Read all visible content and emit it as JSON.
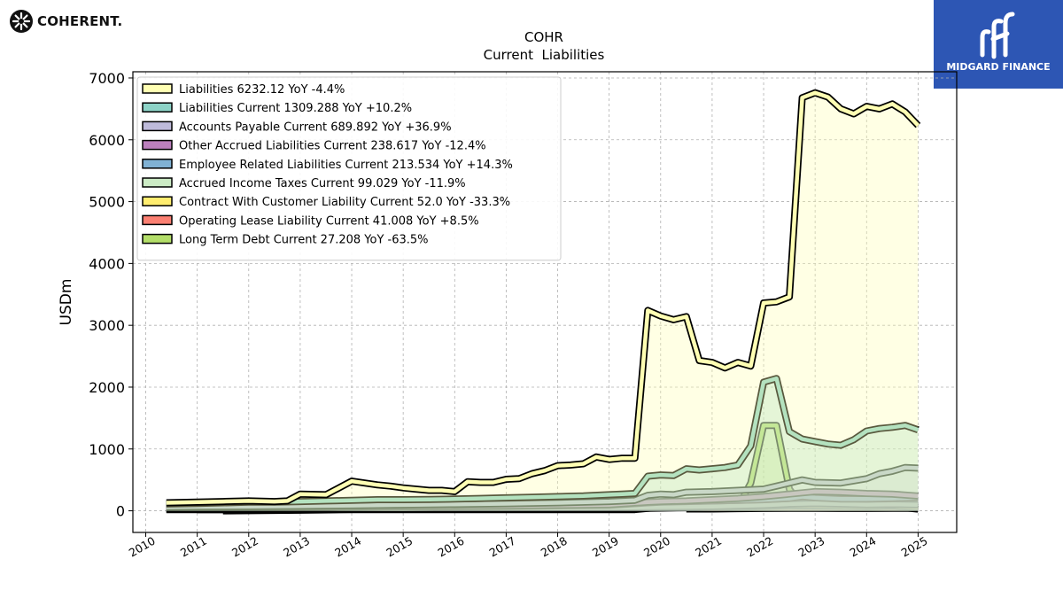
{
  "header": {
    "logo_text": "COHERENT.",
    "brand_text": "MIDGARD FINANCE"
  },
  "chart_data": {
    "type": "area",
    "title": "COHR",
    "subtitle": "Current  Liabilities",
    "ylabel": "USDm",
    "xlabel": "",
    "xlim": [
      2009.75,
      2025.75
    ],
    "ylim": [
      -350,
      7100
    ],
    "xticks": [
      2010,
      2011,
      2012,
      2013,
      2014,
      2015,
      2016,
      2017,
      2018,
      2019,
      2020,
      2021,
      2022,
      2023,
      2024,
      2025
    ],
    "yticks": [
      0,
      1000,
      2000,
      3000,
      4000,
      5000,
      6000,
      7000
    ],
    "grid": true,
    "legend_position": "top-left",
    "series": [
      {
        "name": "Long Term Debt Current",
        "legend": "Long Term Debt Current  27.208 YoY -63.5%",
        "color": "#b3de69",
        "x": [
          2011.5,
          2013.0,
          2014.0,
          2015.0,
          2016.0,
          2017.0,
          2018.0,
          2019.0,
          2019.5,
          2019.75,
          2020.0,
          2020.5,
          2021.0,
          2021.5,
          2021.75,
          2022.0,
          2022.25,
          2022.5,
          2022.75,
          2023.0,
          2023.5,
          2024.0,
          2024.5,
          2024.75,
          2025.0
        ],
        "y": [
          0,
          10,
          20,
          20,
          20,
          20,
          20,
          20,
          20,
          40,
          60,
          60,
          60,
          60,
          450,
          1380,
          1380,
          350,
          80,
          60,
          60,
          60,
          60,
          50,
          27.208
        ]
      },
      {
        "name": "Operating Lease Liability Current",
        "legend": "Operating Lease Liability Current  41.008 YoY +8.5%",
        "color": "#fb8072",
        "x": [
          2020.5,
          2021.0,
          2021.5,
          2022.0,
          2022.5,
          2023.0,
          2023.5,
          2024.0,
          2024.5,
          2025.0
        ],
        "y": [
          30,
          30,
          35,
          38,
          40,
          40,
          38,
          38,
          40,
          41.008
        ]
      },
      {
        "name": "Contract With Customer Liability Current",
        "legend": "Contract With Customer Liability Current  52.0 YoY -33.3%",
        "color": "#ffed6f",
        "x": [
          2011.0,
          2013.0,
          2015.0,
          2017.0,
          2019.0,
          2019.75,
          2020.5,
          2021.0,
          2021.5,
          2022.0,
          2022.5,
          2023.0,
          2023.5,
          2024.0,
          2024.5,
          2025.0
        ],
        "y": [
          20,
          20,
          25,
          30,
          35,
          40,
          50,
          55,
          60,
          70,
          85,
          80,
          75,
          70,
          78,
          52.0
        ]
      },
      {
        "name": "Accrued Income Taxes Current",
        "legend": "Accrued Income Taxes Current  99.029 YoY -11.9%",
        "color": "#ccebc5",
        "x": [
          2010.4,
          2011.0,
          2012.0,
          2013.0,
          2014.0,
          2015.0,
          2016.0,
          2017.0,
          2018.0,
          2019.0,
          2020.0,
          2021.0,
          2022.0,
          2022.5,
          2023.0,
          2023.5,
          2024.0,
          2024.5,
          2025.0
        ],
        "y": [
          20,
          20,
          20,
          25,
          30,
          30,
          35,
          35,
          40,
          50,
          60,
          70,
          90,
          110,
          120,
          110,
          100,
          105,
          99.029
        ]
      },
      {
        "name": "Employee Related Liabilities Current",
        "legend": "Employee Related Liabilities Current  213.534 YoY +14.3%",
        "color": "#80b1d3",
        "x": [
          2010.4,
          2011.0,
          2012.0,
          2013.0,
          2014.0,
          2015.0,
          2016.0,
          2017.0,
          2018.0,
          2019.0,
          2019.75,
          2020.0,
          2020.5,
          2021.0,
          2021.5,
          2022.0,
          2022.5,
          2022.75,
          2023.0,
          2023.5,
          2024.0,
          2024.5,
          2025.0
        ],
        "y": [
          30,
          35,
          40,
          45,
          55,
          60,
          65,
          70,
          80,
          90,
          130,
          140,
          150,
          160,
          170,
          180,
          200,
          230,
          210,
          190,
          190,
          200,
          213.534
        ]
      },
      {
        "name": "Other Accrued Liabilities Current",
        "legend": "Other Accrued Liabilities Current  238.617 YoY -12.4%",
        "color": "#bc80bd",
        "x": [
          2010.4,
          2011.0,
          2012.0,
          2013.0,
          2014.0,
          2015.0,
          2016.0,
          2017.0,
          2018.0,
          2019.0,
          2019.75,
          2020.0,
          2020.5,
          2021.0,
          2021.5,
          2022.0,
          2022.5,
          2022.75,
          2023.0,
          2023.5,
          2024.0,
          2024.5,
          2025.0
        ],
        "y": [
          40,
          45,
          50,
          55,
          60,
          70,
          75,
          80,
          90,
          100,
          140,
          150,
          160,
          180,
          200,
          230,
          270,
          290,
          310,
          300,
          280,
          270,
          238.617
        ]
      },
      {
        "name": "Accounts Payable Current",
        "legend": "Accounts Payable Current  689.892 YoY +36.9%",
        "color": "#bebada",
        "x": [
          2010.4,
          2011.0,
          2012.0,
          2013.0,
          2014.0,
          2015.0,
          2016.0,
          2017.0,
          2018.0,
          2019.0,
          2019.5,
          2019.75,
          2020.0,
          2020.25,
          2020.5,
          2021.0,
          2021.5,
          2022.0,
          2022.25,
          2022.5,
          2022.75,
          2023.0,
          2023.5,
          2024.0,
          2024.25,
          2024.5,
          2024.75,
          2025.0
        ],
        "y": [
          60,
          65,
          70,
          75,
          85,
          95,
          105,
          115,
          130,
          150,
          170,
          250,
          270,
          260,
          300,
          310,
          330,
          350,
          400,
          450,
          500,
          460,
          450,
          520,
          600,
          640,
          700,
          689.892
        ]
      },
      {
        "name": "Liabilities Current",
        "legend": "Liabilities Current  1309.288 YoY +10.2%",
        "color": "#8dd3c7",
        "x": [
          2010.4,
          2011.0,
          2011.5,
          2012.0,
          2012.5,
          2013.0,
          2013.5,
          2014.0,
          2014.5,
          2015.0,
          2015.5,
          2016.0,
          2016.5,
          2017.0,
          2017.5,
          2018.0,
          2018.5,
          2019.0,
          2019.25,
          2019.5,
          2019.75,
          2020.0,
          2020.25,
          2020.5,
          2020.75,
          2021.0,
          2021.25,
          2021.5,
          2021.75,
          2022.0,
          2022.25,
          2022.5,
          2022.75,
          2023.0,
          2023.25,
          2023.5,
          2023.75,
          2024.0,
          2024.25,
          2024.5,
          2024.75,
          2025.0
        ],
        "y": [
          110,
          120,
          130,
          140,
          140,
          150,
          160,
          170,
          180,
          180,
          185,
          190,
          200,
          210,
          220,
          230,
          240,
          260,
          270,
          280,
          560,
          580,
          570,
          680,
          660,
          680,
          700,
          740,
          1050,
          2080,
          2140,
          1280,
          1160,
          1120,
          1080,
          1060,
          1150,
          1290,
          1330,
          1350,
          1380,
          1309.288
        ]
      },
      {
        "name": "Liabilities",
        "legend": "Liabilities  6232.12 YoY -4.4%",
        "color": "#ffffb3",
        "x": [
          2010.4,
          2011.0,
          2011.5,
          2012.0,
          2012.5,
          2012.75,
          2013.0,
          2013.5,
          2014.0,
          2014.25,
          2014.5,
          2014.75,
          2015.0,
          2015.25,
          2015.5,
          2015.75,
          2016.0,
          2016.25,
          2016.5,
          2016.75,
          2017.0,
          2017.25,
          2017.5,
          2017.75,
          2018.0,
          2018.25,
          2018.5,
          2018.75,
          2019.0,
          2019.25,
          2019.5,
          2019.75,
          2020.0,
          2020.25,
          2020.5,
          2020.75,
          2021.0,
          2021.25,
          2021.5,
          2021.75,
          2022.0,
          2022.25,
          2022.5,
          2022.75,
          2023.0,
          2023.25,
          2023.5,
          2023.75,
          2024.0,
          2024.25,
          2024.5,
          2024.75,
          2025.0
        ],
        "y": [
          130,
          140,
          150,
          160,
          150,
          160,
          270,
          260,
          480,
          450,
          420,
          400,
          370,
          350,
          330,
          330,
          310,
          470,
          460,
          460,
          510,
          520,
          600,
          650,
          730,
          740,
          760,
          870,
          830,
          850,
          850,
          3240,
          3150,
          3090,
          3140,
          2430,
          2400,
          2310,
          2400,
          2340,
          3360,
          3380,
          3460,
          6680,
          6760,
          6690,
          6500,
          6420,
          6540,
          6500,
          6580,
          6450,
          6232.12
        ]
      }
    ]
  }
}
